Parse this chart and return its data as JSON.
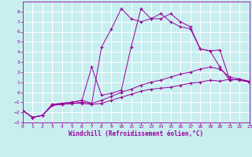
{
  "xlabel": "Windchill (Refroidissement éolien,°C)",
  "xlim": [
    0,
    23
  ],
  "ylim": [
    -3,
    9
  ],
  "xticks": [
    0,
    1,
    2,
    3,
    4,
    5,
    6,
    7,
    8,
    9,
    10,
    11,
    12,
    13,
    14,
    15,
    16,
    17,
    18,
    19,
    20,
    21,
    22,
    23
  ],
  "yticks": [
    -3,
    -2,
    -1,
    0,
    1,
    2,
    3,
    4,
    5,
    6,
    7,
    8
  ],
  "background_color": "#c8eef0",
  "grid_color": "#ffffff",
  "line_color": "#990099",
  "line1_x": [
    0,
    1,
    2,
    3,
    4,
    5,
    6,
    7,
    8,
    9,
    10,
    11,
    12,
    13,
    14,
    15,
    16,
    17,
    18,
    19,
    20,
    21,
    22,
    23
  ],
  "line1_y": [
    -1.8,
    -2.5,
    -2.3,
    -1.3,
    -1.2,
    -1.1,
    -1.1,
    -1.2,
    -1.1,
    -0.8,
    -0.5,
    -0.2,
    0.1,
    0.3,
    0.4,
    0.5,
    0.7,
    0.9,
    1.0,
    1.2,
    1.1,
    1.3,
    1.2,
    1.0
  ],
  "line2_x": [
    0,
    1,
    2,
    3,
    4,
    5,
    6,
    7,
    8,
    9,
    10,
    11,
    12,
    13,
    14,
    15,
    16,
    17,
    18,
    19,
    20,
    21,
    22,
    23
  ],
  "line2_y": [
    -1.8,
    -2.5,
    -2.3,
    -1.3,
    -1.2,
    -1.1,
    -1.0,
    -1.1,
    -0.8,
    -0.4,
    0.0,
    0.3,
    0.7,
    1.0,
    1.2,
    1.5,
    1.8,
    2.0,
    2.3,
    2.5,
    2.3,
    1.5,
    1.3,
    1.1
  ],
  "line3_x": [
    0,
    1,
    2,
    3,
    4,
    5,
    6,
    7,
    8,
    9,
    10,
    11,
    12,
    13,
    14,
    15,
    16,
    17,
    18,
    19,
    20,
    21,
    22,
    23
  ],
  "line3_y": [
    -1.8,
    -2.5,
    -2.3,
    -1.2,
    -1.1,
    -1.0,
    -0.8,
    2.5,
    -0.3,
    -0.1,
    0.2,
    4.5,
    8.3,
    7.3,
    7.3,
    7.8,
    7.0,
    6.5,
    4.3,
    4.1,
    2.5,
    1.2,
    1.3,
    1.0
  ],
  "line4_x": [
    0,
    1,
    2,
    3,
    4,
    5,
    6,
    7,
    8,
    9,
    10,
    11,
    12,
    13,
    14,
    15,
    16,
    17,
    18,
    19,
    20,
    21,
    22,
    23
  ],
  "line4_y": [
    -1.8,
    -2.5,
    -2.3,
    -1.2,
    -1.1,
    -1.0,
    -0.8,
    -1.1,
    4.5,
    6.3,
    8.3,
    7.3,
    7.0,
    7.3,
    7.8,
    7.0,
    6.5,
    6.3,
    4.3,
    4.1,
    4.2,
    1.2,
    1.3,
    1.0
  ]
}
